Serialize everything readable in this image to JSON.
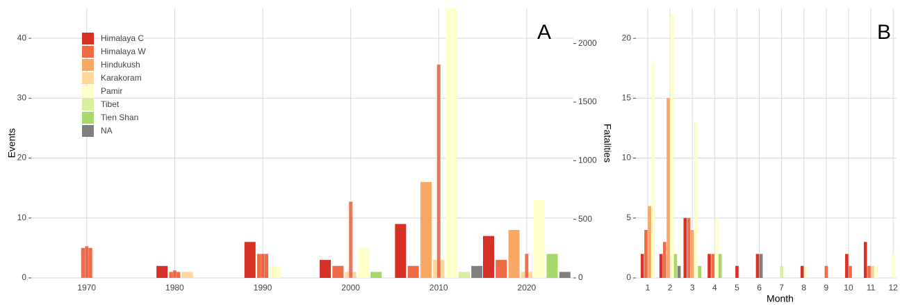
{
  "chart_data": [
    {
      "type": "bar",
      "title": "A",
      "y_label": "Events",
      "y2_label": "Fatalities",
      "categories": [
        1970,
        1980,
        1990,
        2000,
        2010,
        2020
      ],
      "xlim": [
        1963.7,
        2025.3
      ],
      "xticks": [
        1970,
        1980,
        1990,
        2000,
        2010,
        2020
      ],
      "ylim": [
        0,
        45
      ],
      "yticks": [
        0,
        10,
        20,
        30,
        40
      ],
      "y2lim": [
        0,
        2300
      ],
      "y2ticks": [
        0,
        500,
        1000,
        1500,
        2000
      ],
      "grid": true,
      "legend": "top-left",
      "series": [
        {
          "name": "Himalaya C",
          "color": "#d73027",
          "values": [
            null,
            2,
            6,
            3,
            9,
            7
          ]
        },
        {
          "name": "Himalaya W",
          "color": "#f06a45",
          "values": [
            5,
            1,
            4,
            2,
            2,
            3
          ]
        },
        {
          "name": "Hindukush",
          "color": "#f9a864",
          "values": [
            null,
            null,
            null,
            null,
            16,
            8
          ]
        },
        {
          "name": "Karakoram",
          "color": "#fdd69a",
          "values": [
            null,
            1,
            null,
            1,
            3,
            1
          ]
        },
        {
          "name": "Pamir",
          "color": "#ffffc8",
          "values": [
            null,
            null,
            2,
            5,
            45,
            13
          ]
        },
        {
          "name": "Tibet",
          "color": "#d9ef9b",
          "values": [
            null,
            null,
            null,
            null,
            1,
            null
          ]
        },
        {
          "name": "Tien Shan",
          "color": "#a6d96a",
          "values": [
            null,
            null,
            null,
            1,
            null,
            4
          ]
        },
        {
          "name": "NA",
          "color": "#808080",
          "values": [
            null,
            null,
            null,
            null,
            2,
            1
          ]
        }
      ],
      "fatalities": {
        "axis": "y2",
        "color": "#e8664a",
        "values": [
          270,
          65,
          205,
          650,
          1820,
          205
        ]
      }
    },
    {
      "type": "bar",
      "title": "B",
      "x_label": "Month",
      "categories": [
        1,
        2,
        3,
        4,
        5,
        6,
        7,
        8,
        9,
        10,
        11,
        12
      ],
      "xlim": [
        0.47,
        12.15
      ],
      "xticks": [
        1,
        2,
        3,
        4,
        5,
        6,
        7,
        8,
        9,
        10,
        11,
        12
      ],
      "ylim": [
        0,
        22.5
      ],
      "yticks": [
        0,
        5,
        10,
        15,
        20
      ],
      "grid": true,
      "series": [
        {
          "color": "#d73027",
          "values": [
            2,
            2,
            5,
            2,
            1,
            2,
            null,
            1,
            null,
            2,
            3,
            null
          ]
        },
        {
          "color": "#f06a45",
          "values": [
            4,
            3,
            5,
            2,
            null,
            null,
            null,
            null,
            1,
            1,
            1,
            null
          ]
        },
        {
          "color": "#f9a864",
          "values": [
            6,
            15,
            4,
            null,
            null,
            null,
            null,
            null,
            null,
            null,
            null,
            null
          ]
        },
        {
          "color": "#fdd69a",
          "values": [
            null,
            null,
            null,
            null,
            null,
            null,
            null,
            null,
            null,
            null,
            1,
            null
          ]
        },
        {
          "color": "#ffffc8",
          "values": [
            18,
            22,
            13,
            5,
            null,
            null,
            null,
            1,
            null,
            null,
            1,
            2
          ]
        },
        {
          "color": "#d9ef9b",
          "values": [
            null,
            null,
            null,
            null,
            null,
            null,
            1,
            null,
            null,
            null,
            null,
            null
          ]
        },
        {
          "color": "#a6d96a",
          "values": [
            null,
            2,
            1,
            2,
            null,
            null,
            null,
            null,
            null,
            null,
            null,
            null
          ]
        },
        {
          "color": "#808080",
          "values": [
            null,
            1,
            null,
            null,
            null,
            2,
            null,
            null,
            null,
            null,
            null,
            null
          ]
        }
      ]
    }
  ]
}
